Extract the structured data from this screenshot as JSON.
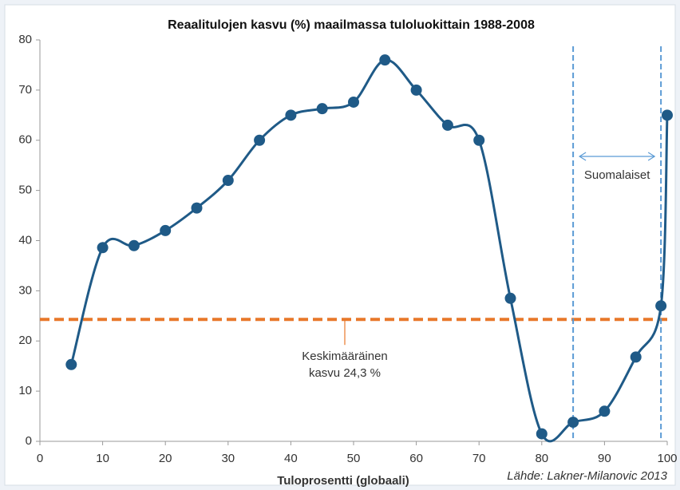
{
  "chart_data": {
    "type": "line",
    "title": "Reaalitulojen kasvu (%) maailmassa tuloluokittain 1988-2008",
    "x_label": "Tuloprosentti (globaali)",
    "source": "Lähde: Lakner-Milanovic 2013",
    "x": [
      5,
      10,
      15,
      20,
      25,
      30,
      35,
      40,
      45,
      50,
      55,
      60,
      65,
      70,
      75,
      80,
      85,
      90,
      95,
      99,
      100
    ],
    "values": [
      15.3,
      38.6,
      39,
      42,
      46.5,
      52,
      60,
      65,
      66.3,
      67.6,
      76,
      70,
      63,
      60,
      28.5,
      1.5,
      3.8,
      6,
      16.8,
      27,
      65
    ],
    "color": "#1f5a87",
    "xlim": [
      0,
      100
    ],
    "xticks": [
      0,
      10,
      20,
      30,
      40,
      50,
      60,
      70,
      80,
      90,
      100
    ],
    "ylim": [
      0,
      80
    ],
    "yticks": [
      0,
      10,
      20,
      30,
      40,
      50,
      60,
      70,
      80
    ],
    "hline": {
      "value": 24.3,
      "label_lines": [
        "Keskimääräinen",
        "kasvu 24,3 %"
      ],
      "color": "#e8782a"
    },
    "vlines": {
      "values": [
        85,
        99
      ],
      "label": "Suomalaiset",
      "color": "#5b9bd5"
    }
  }
}
